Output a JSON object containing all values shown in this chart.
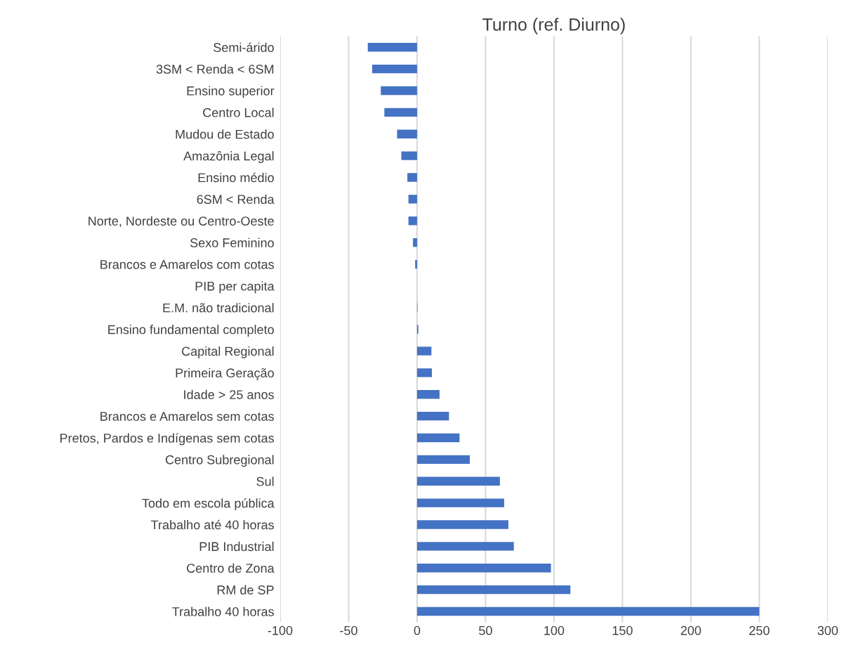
{
  "chart_data": {
    "type": "bar",
    "orientation": "horizontal",
    "title": "Turno (ref. Diurno)",
    "categories": [
      "Semi-árido",
      "3SM < Renda < 6SM",
      "Ensino superior",
      "Centro Local",
      "Mudou de Estado",
      "Amazônia Legal",
      "Ensino médio",
      "6SM < Renda",
      "Norte, Nordeste ou Centro-Oeste",
      "Sexo Feminino",
      "Brancos e Amarelos com cotas",
      "PIB per capita",
      "E.M. não tradicional",
      "Ensino fundamental completo",
      "Capital Regional",
      "Primeira Geração",
      "Idade > 25 anos",
      "Brancos e Amarelos sem cotas",
      "Pretos, Pardos e Indígenas sem cotas",
      "Centro Subregional",
      "Sul",
      "Todo em escola pública",
      "Trabalho até 40 horas",
      "PIB Industrial",
      "Centro de Zona",
      "RM de SP",
      "Trabalho 40 horas"
    ],
    "values": [
      -36,
      -32.8,
      -26.5,
      -23.9,
      -14.6,
      -11.5,
      -7.1,
      -6.3,
      -6.3,
      -3,
      -1.4,
      0,
      0.3,
      0.9,
      10.5,
      10.8,
      16.4,
      23.3,
      31,
      38.5,
      60.5,
      63.6,
      66.7,
      70.7,
      97.8,
      112,
      250
    ],
    "color": "#4472c4",
    "xlim": [
      -100,
      300
    ],
    "xticks": [
      -100,
      -50,
      0,
      50,
      100,
      150,
      200,
      250,
      300
    ],
    "grid": "x"
  }
}
